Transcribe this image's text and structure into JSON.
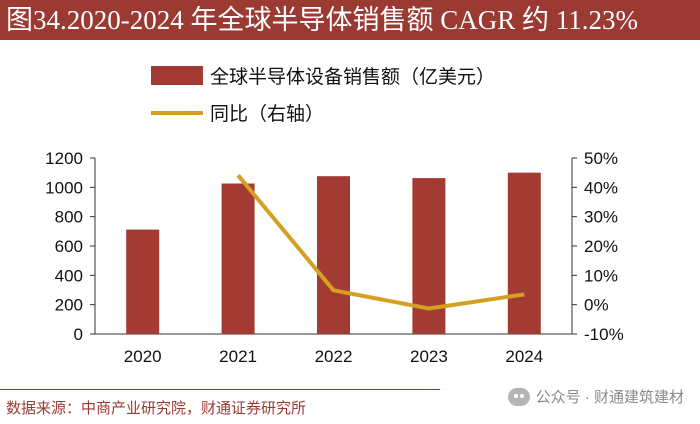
{
  "header": {
    "title": "图34.2020-2024 年全球半导体销售额 CAGR 约 11.23%"
  },
  "footer": {
    "source": "数据来源：中商产业研究院，财通证券研究所",
    "watermark": "公众号 · 财通建筑建材"
  },
  "colors": {
    "bar": "#a33a33",
    "line": "#d4a021",
    "title_bg": "#9b3a33"
  },
  "chart_data": {
    "type": "bar+line",
    "categories": [
      "2020",
      "2021",
      "2022",
      "2023",
      "2024"
    ],
    "series": [
      {
        "name": "全球半导体设备销售额（亿美元）",
        "type": "bar",
        "axis": "left",
        "values": [
          712,
          1026,
          1076,
          1063,
          1100
        ]
      },
      {
        "name": "同比（右轴）",
        "type": "line",
        "axis": "right",
        "values": [
          null,
          44.1,
          4.9,
          -1.3,
          3.5
        ]
      }
    ],
    "y_left": {
      "min": 0,
      "max": 1200,
      "step": 200,
      "ticks": [
        "0",
        "200",
        "400",
        "600",
        "800",
        "1000",
        "1200"
      ]
    },
    "y_right": {
      "min": -10,
      "max": 50,
      "step": 10,
      "ticks": [
        "-10%",
        "0%",
        "10%",
        "20%",
        "30%",
        "40%",
        "50%"
      ]
    },
    "legend_position": "top-center"
  }
}
